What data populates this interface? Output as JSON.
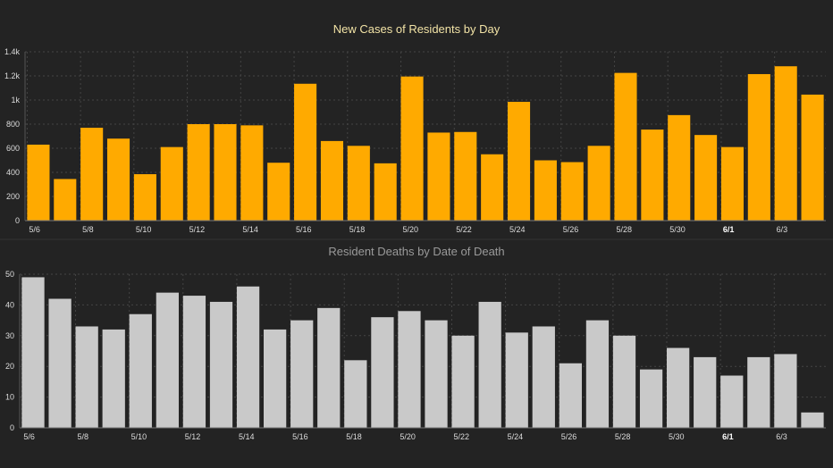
{
  "chart_data": [
    {
      "type": "bar",
      "title": "New Cases of Residents by Day",
      "xlabel": "",
      "ylabel": "",
      "ylim": [
        0,
        1400
      ],
      "yticks": [
        0,
        200,
        400,
        600,
        800,
        1000,
        1200,
        1400
      ],
      "ytick_labels": [
        "0",
        "200",
        "400",
        "600",
        "800",
        "1k",
        "1.2k",
        "1.4k"
      ],
      "categories": [
        "5/6",
        "5/7",
        "5/8",
        "5/9",
        "5/10",
        "5/11",
        "5/12",
        "5/13",
        "5/14",
        "5/15",
        "5/16",
        "5/17",
        "5/18",
        "5/19",
        "5/20",
        "5/21",
        "5/22",
        "5/23",
        "5/24",
        "5/25",
        "5/26",
        "5/27",
        "5/28",
        "5/29",
        "5/30",
        "5/31",
        "6/1",
        "6/2",
        "6/3",
        "6/4"
      ],
      "xtick_labels": [
        "5/6",
        "5/8",
        "5/10",
        "5/12",
        "5/14",
        "5/16",
        "5/18",
        "5/20",
        "5/22",
        "5/24",
        "5/26",
        "5/28",
        "5/30",
        "6/1",
        "6/3"
      ],
      "bold_ticks": [
        "6/1"
      ],
      "values": [
        630,
        345,
        770,
        680,
        385,
        610,
        800,
        800,
        790,
        480,
        1135,
        660,
        620,
        475,
        1195,
        730,
        735,
        550,
        985,
        500,
        485,
        620,
        1225,
        755,
        875,
        710,
        610,
        1215,
        1280,
        1045
      ],
      "grid": true,
      "color": "#ffaa00",
      "title_color": "#f2e3a6"
    },
    {
      "type": "bar",
      "title": "Resident Deaths by Date of Death",
      "xlabel": "",
      "ylabel": "",
      "ylim": [
        0,
        50
      ],
      "yticks": [
        0,
        10,
        20,
        30,
        40,
        50
      ],
      "ytick_labels": [
        "0",
        "10",
        "20",
        "30",
        "40",
        "50"
      ],
      "categories": [
        "5/6",
        "5/7",
        "5/8",
        "5/9",
        "5/10",
        "5/11",
        "5/12",
        "5/13",
        "5/14",
        "5/15",
        "5/16",
        "5/17",
        "5/18",
        "5/19",
        "5/20",
        "5/21",
        "5/22",
        "5/23",
        "5/24",
        "5/25",
        "5/26",
        "5/27",
        "5/28",
        "5/29",
        "5/30",
        "5/31",
        "6/1",
        "6/2",
        "6/3",
        "6/4"
      ],
      "xtick_labels": [
        "5/6",
        "5/8",
        "5/10",
        "5/12",
        "5/14",
        "5/16",
        "5/18",
        "5/20",
        "5/22",
        "5/24",
        "5/26",
        "5/28",
        "5/30",
        "6/1",
        "6/3"
      ],
      "bold_ticks": [
        "6/1"
      ],
      "values": [
        49,
        42,
        33,
        32,
        37,
        44,
        43,
        41,
        46,
        32,
        35,
        39,
        22,
        36,
        38,
        35,
        30,
        41,
        31,
        33,
        21,
        35,
        30,
        19,
        26,
        23,
        17,
        23,
        24,
        5
      ],
      "grid": true,
      "color": "#c9c9c9",
      "title_color": "#9a9a9a"
    }
  ]
}
